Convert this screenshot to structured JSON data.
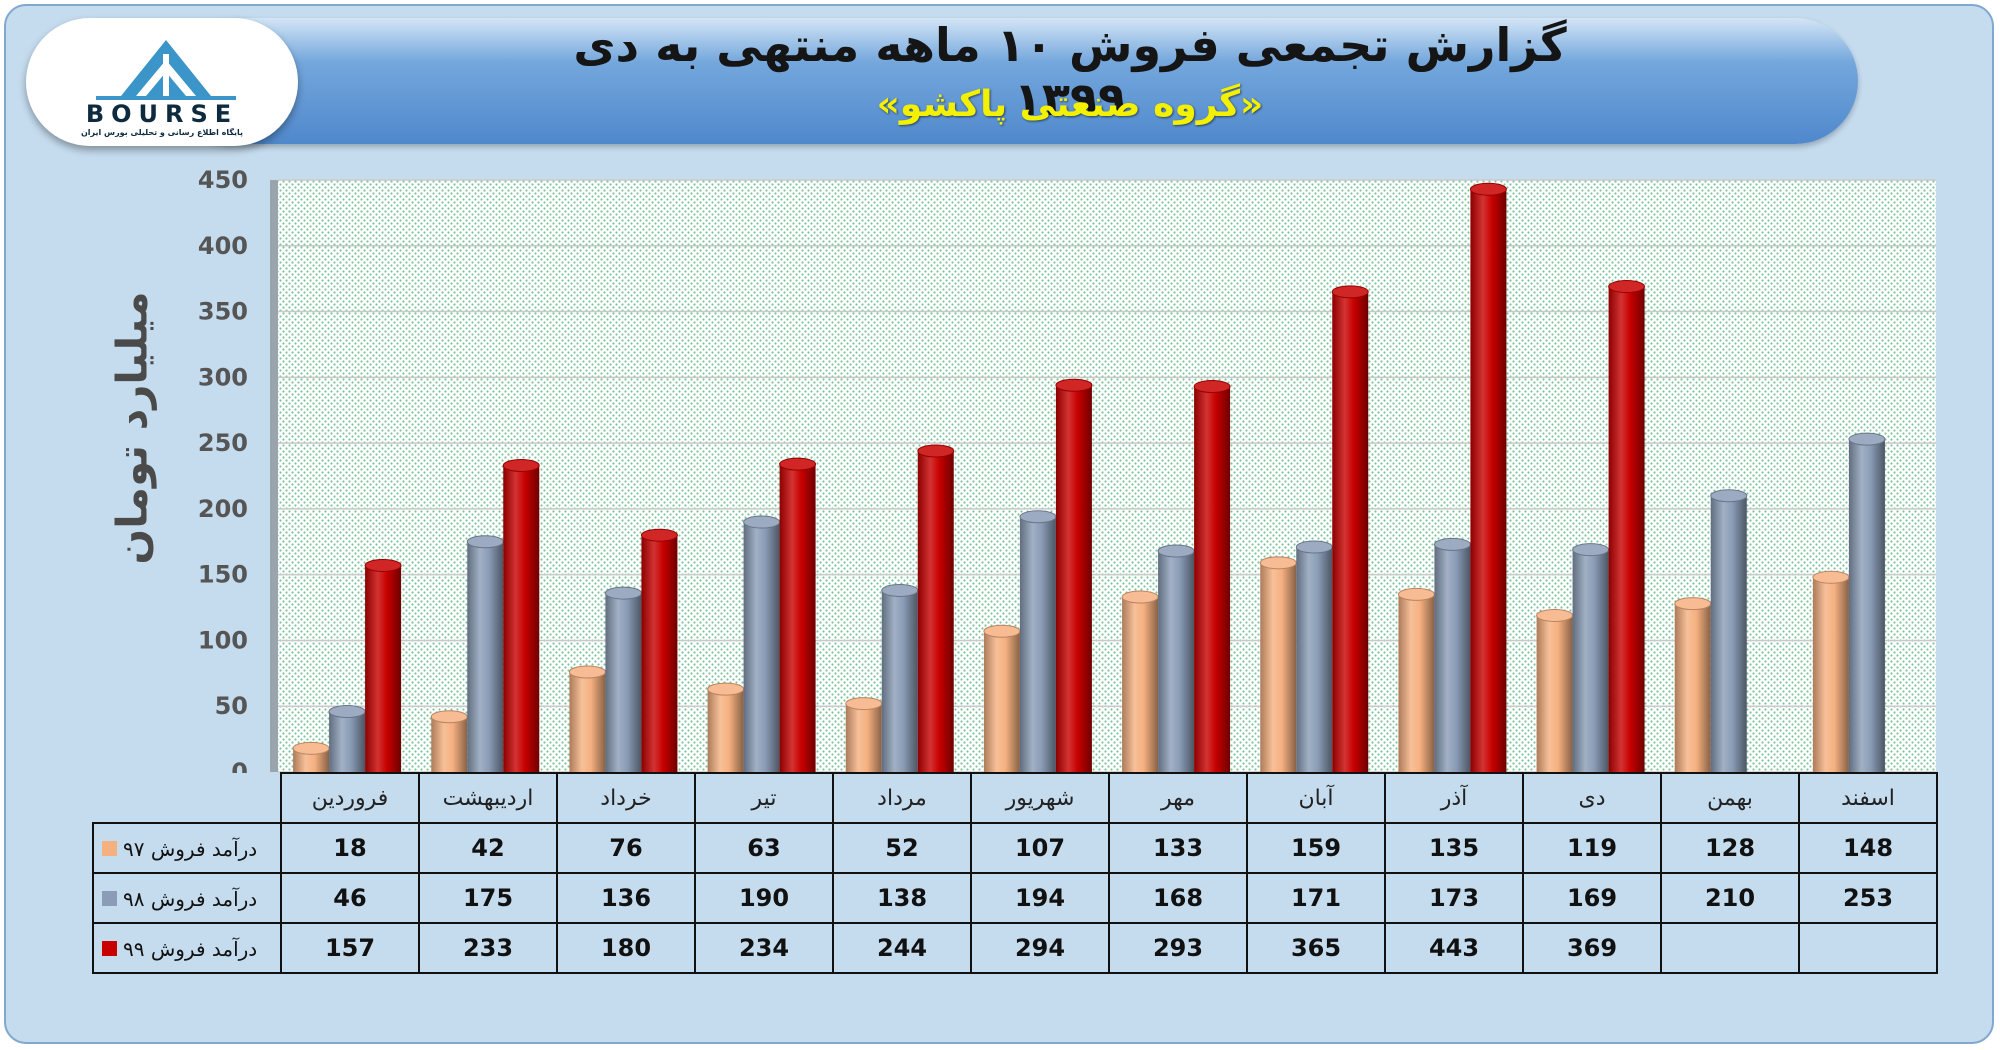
{
  "header": {
    "title": "گزارش تجمعی فروش ۱۰ ماهه منتهی به دی ۱۳۹۹",
    "subtitle": "«گروه صنعتی پاکشو»"
  },
  "logo": {
    "word": "BOURSE",
    "tagline": "پایگاه اطلاع رسانی و تحلیلی بورس ایران"
  },
  "colors": {
    "series_97": "#f5b080",
    "series_98": "#8a9cb6",
    "series_99": "#c80000",
    "banner": "#5b93d3",
    "background": "#c5dcef"
  },
  "chart_data": {
    "type": "bar",
    "ylabel": "میلیارد تومان",
    "ylim": [
      0,
      450
    ],
    "yticks": [
      0,
      50,
      100,
      150,
      200,
      250,
      300,
      350,
      400,
      450
    ],
    "grid": true,
    "categories": [
      "فروردین",
      "اردیبهشت",
      "خرداد",
      "تیر",
      "مرداد",
      "شهریور",
      "مهر",
      "آبان",
      "آذر",
      "دی",
      "بهمن",
      "اسفند"
    ],
    "series": [
      {
        "name": "درآمد فروش ۹۷",
        "values": [
          18,
          42,
          76,
          63,
          52,
          107,
          133,
          159,
          135,
          119,
          128,
          148
        ]
      },
      {
        "name": "درآمد فروش ۹۸",
        "values": [
          46,
          175,
          136,
          190,
          138,
          194,
          168,
          171,
          173,
          169,
          210,
          253
        ]
      },
      {
        "name": "درآمد فروش ۹۹",
        "values": [
          157,
          233,
          180,
          234,
          244,
          294,
          293,
          365,
          443,
          369,
          null,
          null
        ]
      }
    ]
  }
}
